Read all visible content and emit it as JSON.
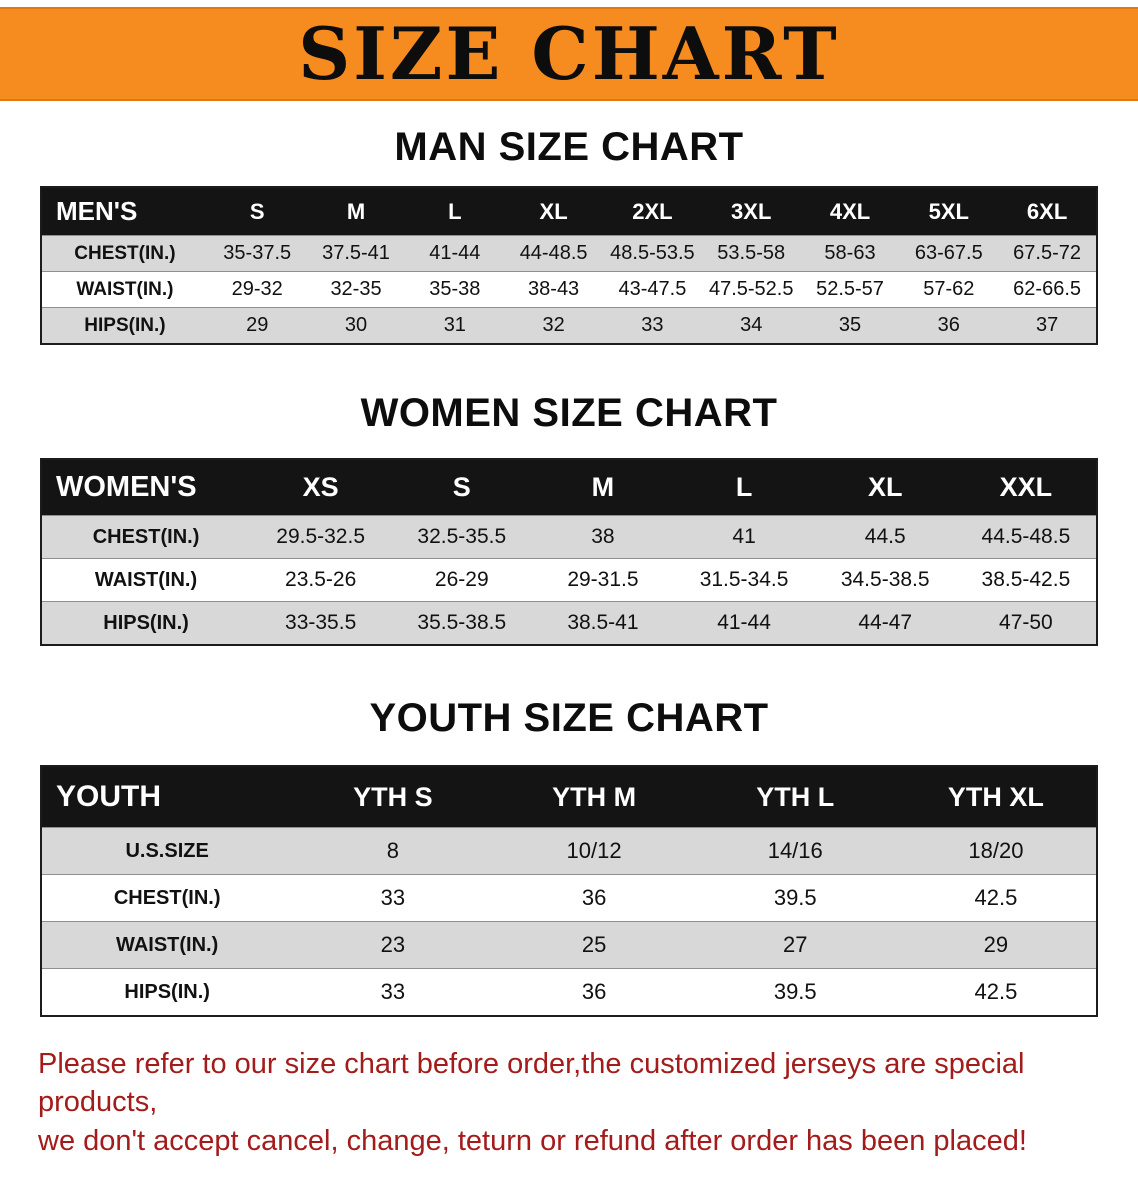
{
  "colors": {
    "banner_bg": "#F68B1F",
    "table_header_bg": "#141414",
    "row_shade": "#D8D8D8",
    "notice_text": "#A31B1B"
  },
  "banner": {
    "title": "SIZE CHART"
  },
  "sections": [
    {
      "id": "men",
      "heading": "MAN SIZE CHART",
      "table": {
        "header": [
          "MEN'S",
          "S",
          "M",
          "L",
          "XL",
          "2XL",
          "3XL",
          "4XL",
          "5XL",
          "6XL"
        ],
        "rows": [
          {
            "label": "CHEST(IN.)",
            "values": [
              "35-37.5",
              "37.5-41",
              "41-44",
              "44-48.5",
              "48.5-53.5",
              "53.5-58",
              "58-63",
              "63-67.5",
              "67.5-72"
            ]
          },
          {
            "label": "WAIST(IN.)",
            "values": [
              "29-32",
              "32-35",
              "35-38",
              "38-43",
              "43-47.5",
              "47.5-52.5",
              "52.5-57",
              "57-62",
              "62-66.5"
            ]
          },
          {
            "label": "HIPS(IN.)",
            "values": [
              "29",
              "30",
              "31",
              "32",
              "33",
              "34",
              "35",
              "36",
              "37"
            ]
          }
        ]
      }
    },
    {
      "id": "women",
      "heading": "WOMEN SIZE CHART",
      "table": {
        "header": [
          "WOMEN'S",
          "XS",
          "S",
          "M",
          "L",
          "XL",
          "XXL"
        ],
        "rows": [
          {
            "label": "CHEST(IN.)",
            "values": [
              "29.5-32.5",
              "32.5-35.5",
              "38",
              "41",
              "44.5",
              "44.5-48.5"
            ]
          },
          {
            "label": "WAIST(IN.)",
            "values": [
              "23.5-26",
              "26-29",
              "29-31.5",
              "31.5-34.5",
              "34.5-38.5",
              "38.5-42.5"
            ]
          },
          {
            "label": "HIPS(IN.)",
            "values": [
              "33-35.5",
              "35.5-38.5",
              "38.5-41",
              "41-44",
              "44-47",
              "47-50"
            ]
          }
        ]
      }
    },
    {
      "id": "youth",
      "heading": "YOUTH SIZE CHART",
      "table": {
        "header": [
          "YOUTH",
          "YTH S",
          "YTH M",
          "YTH L",
          "YTH XL"
        ],
        "rows": [
          {
            "label": "U.S.SIZE",
            "values": [
              "8",
              "10/12",
              "14/16",
              "18/20"
            ]
          },
          {
            "label": "CHEST(IN.)",
            "values": [
              "33",
              "36",
              "39.5",
              "42.5"
            ]
          },
          {
            "label": "WAIST(IN.)",
            "values": [
              "23",
              "25",
              "27",
              "29"
            ]
          },
          {
            "label": "HIPS(IN.)",
            "values": [
              "33",
              "36",
              "39.5",
              "42.5"
            ]
          }
        ]
      }
    }
  ],
  "footer": {
    "lines": [
      "Please refer to our size chart before order,the customized jerseys are special products,",
      "we don't accept cancel, change, teturn or refund after order has been placed!"
    ]
  }
}
